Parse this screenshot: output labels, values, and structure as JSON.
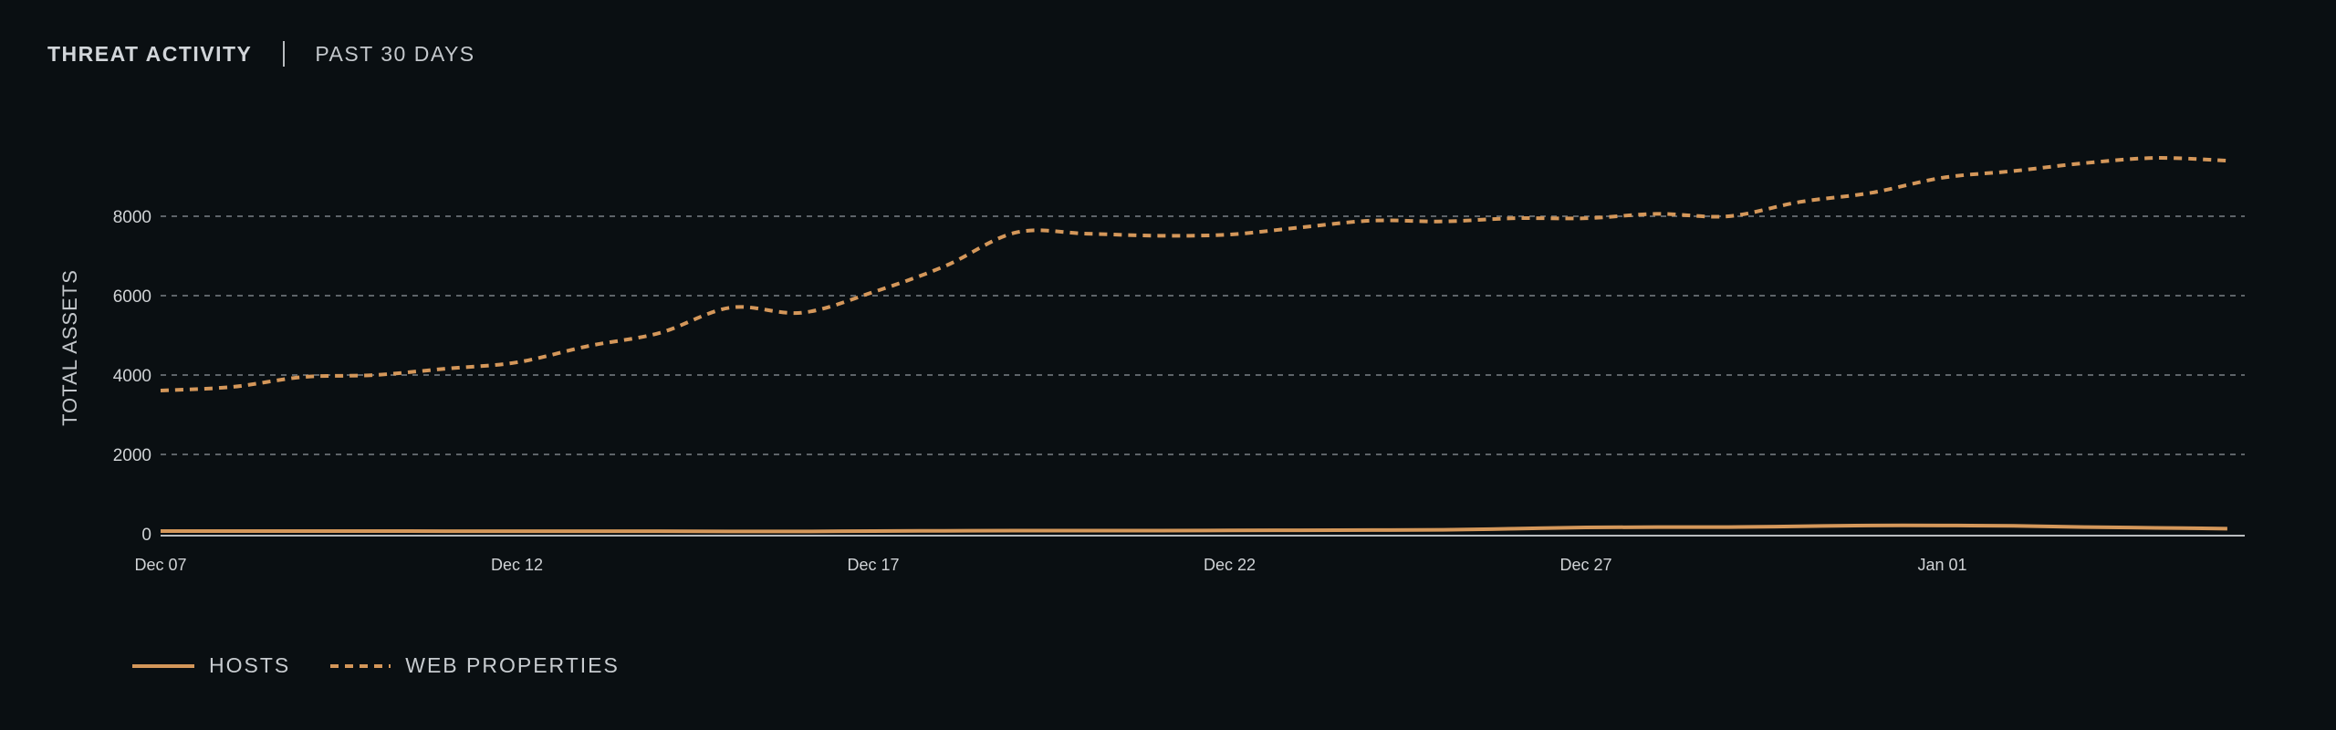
{
  "header": {
    "title": "THREAT ACTIVITY",
    "subtitle": "PAST 30 DAYS"
  },
  "colors": {
    "background": "#0a0f12",
    "series": "#d4975a",
    "grid": "#5e6469",
    "baseline": "#b9bcbf"
  },
  "legend": {
    "items": [
      {
        "label": "HOSTS",
        "style": "solid"
      },
      {
        "label": "WEB PROPERTIES",
        "style": "dashed"
      }
    ]
  },
  "chart_data": {
    "type": "line",
    "title": "THREAT ACTIVITY | PAST 30 DAYS",
    "xlabel": "",
    "ylabel": "TOTAL ASSETS",
    "ylim": [
      0,
      10000
    ],
    "yticks": [
      0,
      2000,
      4000,
      6000,
      8000
    ],
    "xtick_labels": [
      "Dec 07",
      "Dec 12",
      "Dec 17",
      "Dec 22",
      "Dec 27",
      "Jan 01"
    ],
    "grid": true,
    "legend_position": "bottom-left",
    "x": [
      "Dec 07",
      "Dec 08",
      "Dec 09",
      "Dec 10",
      "Dec 11",
      "Dec 12",
      "Dec 13",
      "Dec 14",
      "Dec 15",
      "Dec 16",
      "Dec 17",
      "Dec 18",
      "Dec 19",
      "Dec 20",
      "Dec 21",
      "Dec 22",
      "Dec 23",
      "Dec 24",
      "Dec 25",
      "Dec 26",
      "Dec 27",
      "Dec 28",
      "Dec 29",
      "Dec 30",
      "Dec 31",
      "Jan 01",
      "Jan 02",
      "Jan 03",
      "Jan 04",
      "Jan 05"
    ],
    "series": [
      {
        "name": "HOSTS",
        "style": "solid",
        "values": [
          70,
          70,
          70,
          70,
          65,
          65,
          65,
          65,
          60,
          60,
          70,
          75,
          80,
          80,
          80,
          85,
          90,
          95,
          100,
          130,
          160,
          170,
          170,
          190,
          210,
          210,
          200,
          170,
          150,
          130
        ]
      },
      {
        "name": "WEB PROPERTIES",
        "style": "dashed",
        "values": [
          3610,
          3700,
          3950,
          4000,
          4160,
          4320,
          4730,
          5060,
          5700,
          5570,
          6090,
          6740,
          7590,
          7560,
          7510,
          7540,
          7720,
          7890,
          7870,
          7950,
          7950,
          8060,
          8000,
          8360,
          8590,
          8970,
          9140,
          9340,
          9470,
          9400
        ]
      }
    ]
  }
}
